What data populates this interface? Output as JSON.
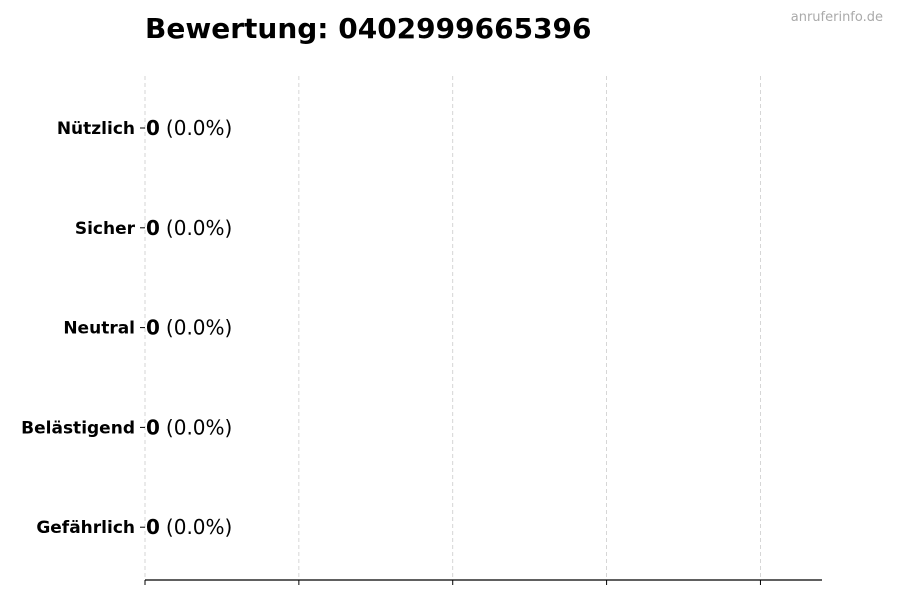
{
  "watermark": "anruferinfo.de",
  "chart_data": {
    "type": "bar",
    "orientation": "horizontal",
    "title": "Bewertung: 0402999665396",
    "categories": [
      "Nützlich",
      "Sicher",
      "Neutral",
      "Belästigend",
      "Gefährlich"
    ],
    "values": [
      0,
      0,
      0,
      0,
      0
    ],
    "percentages": [
      "0.0%",
      "0.0%",
      "0.0%",
      "0.0%",
      "0.0%"
    ],
    "data_labels": [
      {
        "count": "0",
        "pct": "(0.0%)"
      },
      {
        "count": "0",
        "pct": "(0.0%)"
      },
      {
        "count": "0",
        "pct": "(0.0%)"
      },
      {
        "count": "0",
        "pct": "(0.0%)"
      },
      {
        "count": "0",
        "pct": "(0.0%)"
      }
    ],
    "xlabel": "",
    "ylabel": "",
    "xlim": [
      0,
      4.4
    ],
    "xticks": [
      0,
      1,
      2,
      3,
      4
    ],
    "xtick_labels_shown": false,
    "grid": "x dashed",
    "bar_edge_color": "#333333",
    "grid_color": "#cccccc"
  }
}
